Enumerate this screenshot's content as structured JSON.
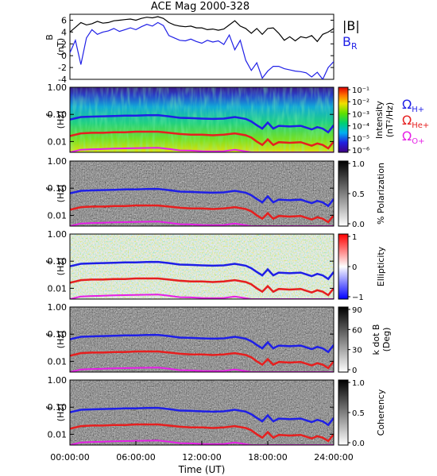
{
  "chart_data": [
    {
      "type": "line",
      "title": "ACE Mag 2000-328",
      "ylabel": "B (nT)",
      "ylim": [
        -4,
        7
      ],
      "yticks": [
        "-4",
        "-2",
        "0",
        "2",
        "4",
        "6"
      ],
      "xlim": [
        0,
        24
      ],
      "legend_placement": "right",
      "series": [
        {
          "name": "|B|",
          "color": "#000000",
          "x": [
            0,
            0.5,
            1,
            1.5,
            2,
            2.5,
            3,
            3.5,
            4,
            4.5,
            5,
            5.5,
            6,
            6.5,
            7,
            7.5,
            8,
            8.5,
            9,
            9.5,
            10,
            10.5,
            11,
            11.5,
            12,
            12.5,
            13,
            13.5,
            14,
            14.5,
            15,
            15.5,
            16,
            16.5,
            17,
            17.5,
            18,
            18.5,
            19,
            19.5,
            20,
            20.5,
            21,
            21.5,
            22,
            22.5,
            23,
            23.5,
            24
          ],
          "y": [
            4.0,
            4.8,
            5.6,
            5.2,
            5.4,
            5.8,
            5.5,
            5.6,
            5.9,
            6.0,
            6.1,
            6.2,
            6.0,
            6.3,
            6.5,
            6.4,
            6.6,
            6.3,
            5.6,
            5.2,
            5.0,
            4.9,
            5.0,
            4.7,
            4.7,
            4.4,
            4.5,
            4.3,
            4.5,
            5.2,
            5.9,
            5.0,
            4.6,
            3.8,
            4.6,
            3.6,
            4.6,
            4.7,
            3.8,
            2.6,
            3.2,
            2.5,
            3.2,
            3.0,
            3.4,
            2.4,
            3.6,
            4.0,
            4.6
          ]
        },
        {
          "name": "B",
          "name_subscript": "R",
          "color": "#1f1fe6",
          "x": [
            0,
            0.5,
            1,
            1.5,
            2,
            2.5,
            3,
            3.5,
            4,
            4.5,
            5,
            5.5,
            6,
            6.5,
            7,
            7.5,
            8,
            8.5,
            9,
            9.5,
            10,
            10.5,
            11,
            11.5,
            12,
            12.5,
            13,
            13.5,
            14,
            14.5,
            15,
            15.5,
            16,
            16.5,
            17,
            17.5,
            18,
            18.5,
            19,
            19.5,
            20,
            20.5,
            21,
            21.5,
            22,
            22.5,
            23,
            23.5,
            24
          ],
          "y": [
            0.5,
            2.6,
            -1.5,
            3.0,
            4.4,
            3.6,
            4.0,
            4.2,
            4.6,
            4.1,
            4.4,
            4.7,
            4.4,
            4.9,
            5.3,
            5.0,
            5.6,
            5.1,
            3.4,
            3.0,
            2.6,
            2.5,
            2.8,
            2.4,
            2.1,
            2.6,
            2.3,
            2.5,
            1.9,
            3.5,
            1.0,
            2.6,
            -0.8,
            -2.5,
            -1.2,
            -3.8,
            -2.6,
            -1.8,
            -1.8,
            -2.2,
            -2.4,
            -2.6,
            -2.7,
            -2.9,
            -3.6,
            -2.8,
            -4.0,
            -2.0,
            -1.0
          ]
        }
      ]
    },
    {
      "type": "heatmap",
      "xlabel": "",
      "ylabel": "f (Hz)",
      "yscale": "log",
      "ylim": [
        0.004,
        1.0
      ],
      "yticks": [
        "1.00",
        "0.10",
        "0.01"
      ],
      "colorbar_label": "Intensity (nT²/Hz)",
      "colorbar_ticks": [
        "10⁻¹",
        "10⁻²",
        "10⁻³",
        "10⁻⁴",
        "10⁻⁵",
        "10⁻⁶"
      ],
      "colormap": "rainbow",
      "legend": [
        "Ω_H+",
        "Ω_He+",
        "Ω_O+"
      ]
    },
    {
      "type": "heatmap",
      "ylabel": "f (Hz)",
      "yscale": "log",
      "colorbar_label": "% Polarization",
      "colorbar_ticks": [
        "1.0",
        "0.5",
        "0.0"
      ],
      "colormap": "grayscale"
    },
    {
      "type": "heatmap",
      "ylabel": "f (Hz)",
      "yscale": "log",
      "colorbar_label": "Ellipticity",
      "colorbar_ticks": [
        "1",
        "0",
        "−1"
      ],
      "colormap": "blue-white-red"
    },
    {
      "type": "heatmap",
      "ylabel": "f (Hz)",
      "yscale": "log",
      "colorbar_label": "k dot B (Deg)",
      "colorbar_ticks": [
        "90",
        "60",
        "30",
        "0"
      ],
      "colormap": "grayscale"
    },
    {
      "type": "heatmap",
      "ylabel": "f (Hz)",
      "yscale": "log",
      "xlabel": "Time (UT)",
      "xticks": [
        "00:00:00",
        "06:00:00",
        "12:00:00",
        "18:00:00",
        "24:00:00"
      ],
      "colorbar_label": "Coherency",
      "colorbar_ticks": [
        "1.0",
        "0.5",
        "0.0"
      ],
      "colormap": "grayscale"
    }
  ],
  "cyclotron_lines": {
    "x": [
      0,
      1,
      2,
      3,
      4,
      5,
      6,
      7,
      8,
      9,
      10,
      11,
      12,
      13,
      14,
      15,
      16,
      16.5,
      17,
      17.5,
      18,
      18.5,
      19,
      20,
      21,
      22,
      22.5,
      23,
      23.5,
      24
    ],
    "H+": [
      0.065,
      0.08,
      0.083,
      0.085,
      0.087,
      0.09,
      0.09,
      0.093,
      0.094,
      0.085,
      0.075,
      0.073,
      0.07,
      0.068,
      0.07,
      0.08,
      0.068,
      0.055,
      0.04,
      0.03,
      0.05,
      0.03,
      0.038,
      0.036,
      0.038,
      0.028,
      0.034,
      0.03,
      0.022,
      0.04
    ],
    "He+": [
      0.016,
      0.02,
      0.021,
      0.021,
      0.022,
      0.022,
      0.023,
      0.023,
      0.023,
      0.021,
      0.019,
      0.018,
      0.018,
      0.017,
      0.018,
      0.02,
      0.017,
      0.014,
      0.01,
      0.0075,
      0.012,
      0.0075,
      0.0095,
      0.009,
      0.0095,
      0.007,
      0.0085,
      0.0075,
      0.0056,
      0.01
    ],
    "O+": [
      0.004,
      0.005,
      0.0052,
      0.0053,
      0.0055,
      0.0056,
      0.0057,
      0.0058,
      0.0059,
      0.0053,
      0.0047,
      0.0046,
      0.0044,
      0.0043,
      0.0044,
      0.005,
      0.0043,
      0.004,
      0.004,
      0.004,
      0.004,
      0.004,
      0.004,
      0.004,
      0.004,
      0.004,
      0.004,
      0.004,
      0.004,
      0.004
    ]
  },
  "colors": {
    "H+": "#1f1fe6",
    "He+": "#e61f1f",
    "O+": "#e61fe6"
  },
  "legend_labels": {
    "absB": "|B|",
    "br_main": "B",
    "br_sub": "R",
    "omega": "Ω",
    "h_sub": "H+",
    "he_sub": "He+",
    "o_sub": "O+"
  }
}
